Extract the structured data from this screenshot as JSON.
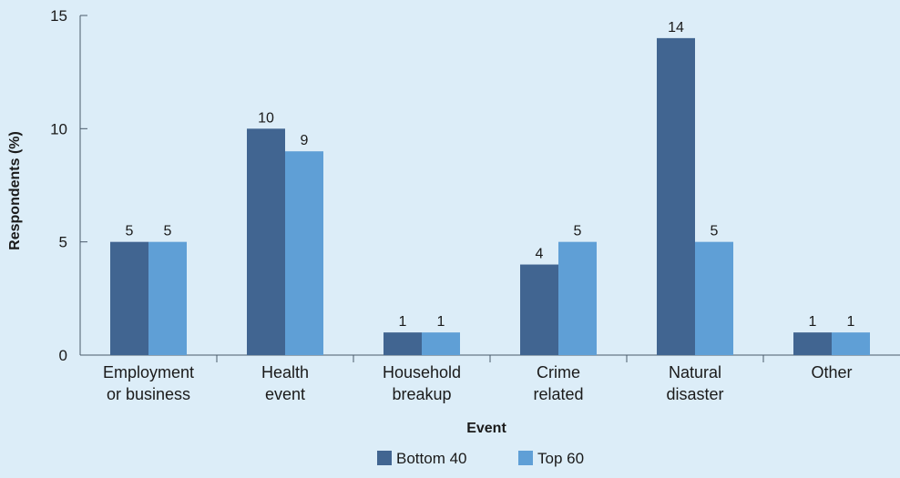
{
  "chart_data": {
    "type": "bar",
    "categories": [
      [
        "Employment",
        "or business"
      ],
      [
        "Health",
        "event"
      ],
      [
        "Household",
        "breakup"
      ],
      [
        "Crime",
        "related"
      ],
      [
        "Natural",
        "disaster"
      ],
      [
        "Other"
      ]
    ],
    "series": [
      {
        "name": "Bottom 40",
        "color": "#416591",
        "values": [
          5,
          10,
          1,
          4,
          14,
          1
        ]
      },
      {
        "name": "Top 60",
        "color": "#5f9fd6",
        "values": [
          5,
          9,
          1,
          5,
          5,
          1
        ]
      }
    ],
    "value_labels": [
      [
        "5",
        "10",
        "1",
        "4",
        "14",
        "1"
      ],
      [
        "5",
        "9",
        "1",
        "5",
        "5",
        "1"
      ]
    ],
    "xlabel": "Event",
    "ylabel": "Respondents (%)",
    "ylim": [
      0,
      15
    ],
    "yticks": [
      0,
      5,
      10,
      15
    ],
    "grid": false,
    "legend_position": "bottom-center",
    "colors": {
      "background": "#dcedf8",
      "axis": "#4a5a6a"
    }
  }
}
